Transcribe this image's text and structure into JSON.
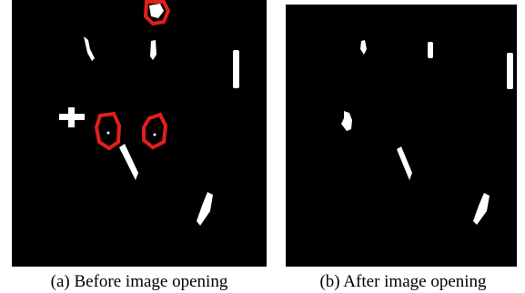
{
  "figure": {
    "panels": [
      {
        "caption": "(a) Before image opening"
      },
      {
        "caption": "(b) After image opening"
      }
    ]
  }
}
